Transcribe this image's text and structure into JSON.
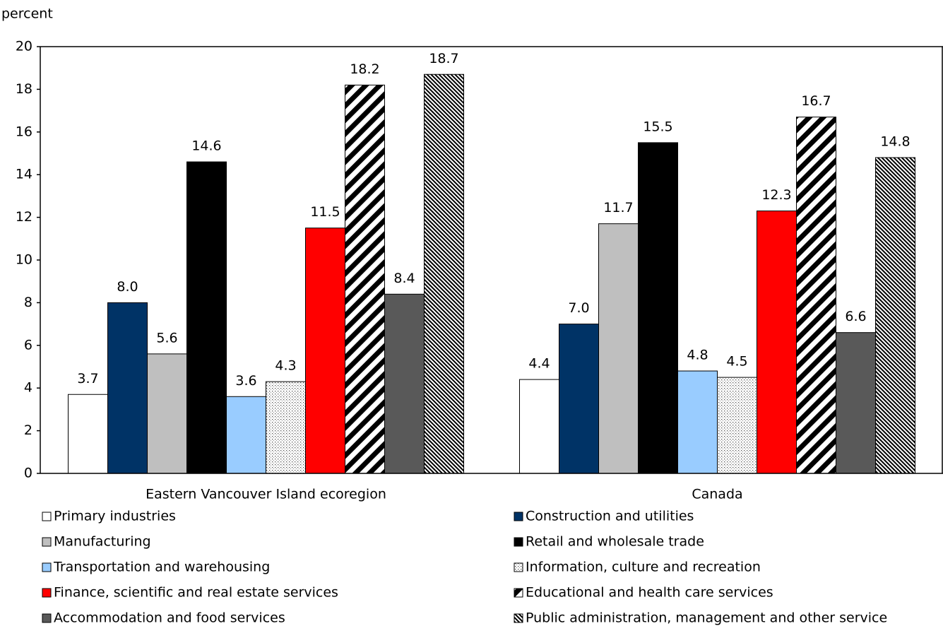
{
  "chart_data": {
    "type": "bar",
    "y_axis_label": "percent",
    "categories": [
      "Eastern Vancouver Island ecoregion",
      "Canada"
    ],
    "ylim": [
      0,
      20
    ],
    "yticks": [
      0,
      2,
      4,
      6,
      8,
      10,
      12,
      14,
      16,
      18,
      20
    ],
    "grid": false,
    "series": [
      {
        "name": "Primary industries",
        "color": "#ffffff",
        "values": [
          3.7,
          4.4
        ]
      },
      {
        "name": "Construction and utilities",
        "color": "#003366",
        "values": [
          8,
          7
        ],
        "value_labels": [
          "8.0",
          "7.0"
        ]
      },
      {
        "name": "Manufacturing",
        "color": "#bfbfbf",
        "values": [
          5.6,
          11.7
        ]
      },
      {
        "name": "Retail and wholesale trade",
        "color": "#000000",
        "values": [
          14.6,
          15.5
        ]
      },
      {
        "name": "Transportation and warehousing",
        "color": "#99ccff",
        "values": [
          3.6,
          4.8
        ]
      },
      {
        "name": "Information, culture and recreation",
        "color": "#000000",
        "pattern": "dots",
        "values": [
          4.3,
          4.5
        ]
      },
      {
        "name": "Finance, scientific and real estate services",
        "color": "#ff0000",
        "values": [
          11.5,
          12.3
        ]
      },
      {
        "name": "Educational and health care services",
        "color": "#000000",
        "pattern": "wide-stripes",
        "values": [
          18.2,
          16.7
        ]
      },
      {
        "name": "Accommodation and food services",
        "color": "#595959",
        "values": [
          8.4,
          6.6
        ]
      },
      {
        "name": "Public administration, management and other service",
        "color": "#000000",
        "pattern": "narrow-stripes",
        "values": [
          18.7,
          14.8
        ]
      }
    ]
  }
}
